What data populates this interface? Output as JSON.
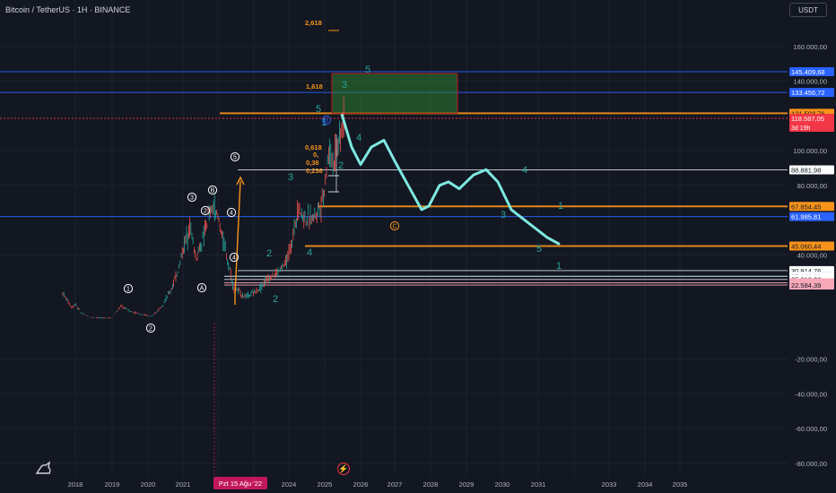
{
  "header": {
    "symbol": "Bitcoin / TetherUS · 1H · BINANCE",
    "currency": "USDT"
  },
  "chart_data": {
    "type": "line",
    "x_labels": [
      "2018",
      "2019",
      "2020",
      "2021",
      "2024",
      "2025",
      "2026",
      "2027",
      "2028",
      "2029",
      "2030",
      "2031",
      "2033",
      "2034",
      "2035"
    ],
    "crosshair_date": "Pzt 15 Ağu '22",
    "y_ticks": [
      "160.000,00",
      "140.000,00",
      "100.000,00",
      "80.000,00",
      "40.000,00",
      "-20.000,00",
      "-40.000,00",
      "-60.000,00",
      "-80.000,00"
    ],
    "y_range": [
      -85000,
      172000
    ],
    "price_levels": [
      {
        "label": "145.409,68",
        "value": 145409.68,
        "line": "#2962ff",
        "badge_bg": "#2962ff",
        "badge_fg": "#ffffff"
      },
      {
        "label": "133.456,72",
        "value": 133456.72,
        "line": "#2962ff",
        "badge_bg": "#2962ff",
        "badge_fg": "#ffffff"
      },
      {
        "label": "121.503,76",
        "value": 121503.76,
        "line": "#f7931a",
        "badge_bg": "#f7931a",
        "badge_fg": "#131722"
      },
      {
        "label": "118.587,05",
        "sublabel": "3d 19h",
        "value": 118587.05,
        "line": "#f23645",
        "badge_bg": "#f23645",
        "badge_fg": "#ffffff"
      },
      {
        "label": "88.881,98",
        "value": 88881.98,
        "line": "#d1d4dc",
        "badge_bg": "#ffffff",
        "badge_fg": "#131722"
      },
      {
        "label": "67.854,45",
        "value": 67854.45,
        "line": "#f7931a",
        "badge_bg": "#f7931a",
        "badge_fg": "#131722"
      },
      {
        "label": "61.985,81",
        "value": 61985.81,
        "line": "#2962ff",
        "badge_bg": "#2962ff",
        "badge_fg": "#ffffff"
      },
      {
        "label": "45.060,44",
        "value": 45060.44,
        "line": "#f7931a",
        "badge_bg": "#f7931a",
        "badge_fg": "#131722"
      },
      {
        "label": "30.914,76",
        "value": 30914.76,
        "line": "#d1d4dc",
        "badge_bg": "#ffffff",
        "badge_fg": "#131722"
      },
      {
        "label": "27.617,36",
        "value": 27617.36,
        "line": "#26a69a",
        "badge_bg": "#26a69a",
        "badge_fg": "#ffffff"
      },
      {
        "label": "27.602,66",
        "value": 27602.66,
        "line": "#d1d4dc",
        "badge_bg": "#ffffff",
        "badge_fg": "#131722"
      },
      {
        "label": "25.813,28",
        "value": 25813.28,
        "line": "#d1d4dc",
        "badge_bg": "#ffffff",
        "badge_fg": "#131722"
      },
      {
        "label": "23.839,83",
        "value": 23839.83,
        "line": "#f7a8b8",
        "badge_bg": "#f7a8b8",
        "badge_fg": "#131722"
      },
      {
        "label": "22.584,39",
        "value": 22584.39,
        "line": "#f7a8b8",
        "badge_bg": "#f7a8b8",
        "badge_fg": "#131722"
      }
    ],
    "fib_labels": [
      "2,618",
      "1,618",
      "0,618",
      "0,",
      "0,38",
      "0,236"
    ],
    "wave_labels_teal": [
      "5",
      "3",
      "5",
      "4",
      "3",
      "2",
      "4",
      "1",
      "3",
      "5",
      "1",
      "2",
      "4",
      "2",
      "1"
    ],
    "wave_labels_circled": [
      "1",
      "2",
      "3",
      "A",
      "B",
      "2",
      "4",
      "5",
      "C",
      "4",
      "B"
    ],
    "colors": {
      "background": "#131722",
      "grid": "#1e222d",
      "up": "#26a69a",
      "down": "#ef5350",
      "projection": "#7ee8e0",
      "fib": "#f7931a",
      "target_box": "#2e7d32"
    }
  }
}
